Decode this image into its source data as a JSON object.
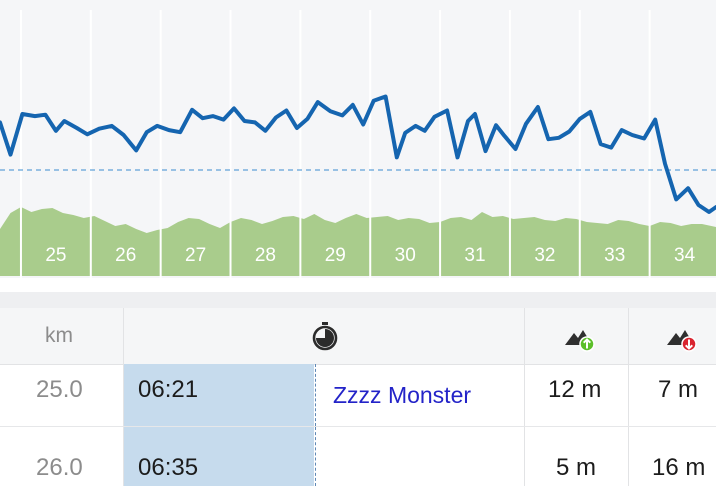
{
  "chart_data": {
    "type": "line",
    "xlabel": "",
    "ylabel": "",
    "km_markers": [
      "25",
      "26",
      "27",
      "28",
      "29",
      "30",
      "31",
      "32",
      "33",
      "34"
    ],
    "x_range_km": [
      24.2,
      34.45
    ],
    "reference_line": "average pace (dashed)",
    "series": [
      {
        "kind": "pace",
        "color": "#1565b0",
        "x": [
          24.2,
          24.35,
          24.52,
          24.7,
          24.85,
          25.0,
          25.12,
          25.3,
          25.45,
          25.62,
          25.8,
          25.97,
          26.15,
          26.3,
          26.45,
          26.62,
          26.78,
          26.95,
          27.1,
          27.25,
          27.4,
          27.55,
          27.7,
          27.85,
          28.0,
          28.15,
          28.3,
          28.45,
          28.6,
          28.75,
          28.93,
          29.1,
          29.25,
          29.4,
          29.55,
          29.72,
          29.88,
          30.0,
          30.15,
          30.28,
          30.42,
          30.6,
          30.75,
          30.9,
          31.0,
          31.15,
          31.3,
          31.42,
          31.58,
          31.73,
          31.9,
          32.05,
          32.2,
          32.35,
          32.5,
          32.65,
          32.8,
          32.95,
          33.1,
          33.25,
          33.42,
          33.58,
          33.72,
          33.88,
          34.05,
          34.2,
          34.35,
          34.45
        ],
        "y": [
          6.8,
          2.2,
          8.0,
          7.7,
          7.9,
          5.6,
          7.0,
          6.0,
          5.1,
          5.9,
          6.3,
          5.0,
          2.8,
          5.4,
          6.3,
          5.7,
          5.4,
          8.6,
          7.4,
          7.7,
          7.2,
          8.8,
          7.0,
          6.8,
          5.6,
          7.5,
          8.5,
          6.0,
          7.3,
          9.7,
          8.4,
          7.8,
          9.3,
          6.5,
          9.9,
          10.5,
          1.8,
          5.3,
          6.3,
          5.6,
          7.6,
          8.5,
          1.8,
          7.0,
          8.0,
          2.7,
          6.4,
          4.9,
          3.0,
          6.6,
          9.0,
          4.4,
          4.6,
          5.5,
          7.3,
          8.3,
          3.7,
          3.2,
          5.7,
          5.0,
          4.5,
          7.2,
          0.9,
          -4.2,
          -2.6,
          -5.0,
          -6.0,
          -5.3
        ]
      },
      {
        "kind": "elevation",
        "color": "#a9cc8c",
        "x": [
          24.2,
          24.35,
          24.5,
          24.65,
          24.8,
          24.95,
          25.1,
          25.25,
          25.4,
          25.55,
          25.7,
          25.85,
          26.0,
          26.15,
          26.3,
          26.45,
          26.6,
          26.75,
          26.9,
          27.05,
          27.2,
          27.35,
          27.5,
          27.65,
          27.8,
          27.95,
          28.1,
          28.25,
          28.4,
          28.55,
          28.7,
          28.85,
          29.0,
          29.15,
          29.3,
          29.45,
          29.6,
          29.75,
          29.9,
          30.05,
          30.2,
          30.35,
          30.5,
          30.65,
          30.8,
          30.95,
          31.1,
          31.25,
          31.4,
          31.55,
          31.7,
          31.85,
          32.0,
          32.15,
          32.3,
          32.45,
          32.6,
          32.75,
          32.9,
          33.05,
          33.2,
          33.35,
          33.5,
          33.65,
          33.8,
          33.95,
          34.1,
          34.25,
          34.45
        ],
        "y": [
          229,
          213,
          207,
          212,
          209,
          208,
          213,
          215,
          218,
          216,
          221,
          226,
          224,
          229,
          233,
          230,
          228,
          222,
          218,
          219,
          224,
          228,
          222,
          218,
          220,
          224,
          221,
          217,
          216,
          219,
          214,
          220,
          223,
          218,
          214,
          218,
          217,
          216,
          220,
          218,
          219,
          223,
          222,
          218,
          217,
          220,
          212,
          217,
          216,
          219,
          218,
          217,
          220,
          221,
          218,
          219,
          222,
          223,
          224,
          220,
          221,
          224,
          226,
          222,
          223,
          226,
          224,
          224,
          227
        ]
      }
    ]
  },
  "table": {
    "headers": {
      "km": "km",
      "time_icon": "stopwatch-icon",
      "ascent_icon": "mountain-ascent-icon",
      "descent_icon": "mountain-descent-icon"
    },
    "rows": [
      {
        "km": "25.0",
        "pace": "06:21",
        "note": "Zzzz Monster",
        "ascent": "12 m",
        "descent": "7 m"
      },
      {
        "km": "26.0",
        "pace": "06:35",
        "note": "",
        "ascent": "5 m",
        "descent": "16 m"
      }
    ]
  }
}
